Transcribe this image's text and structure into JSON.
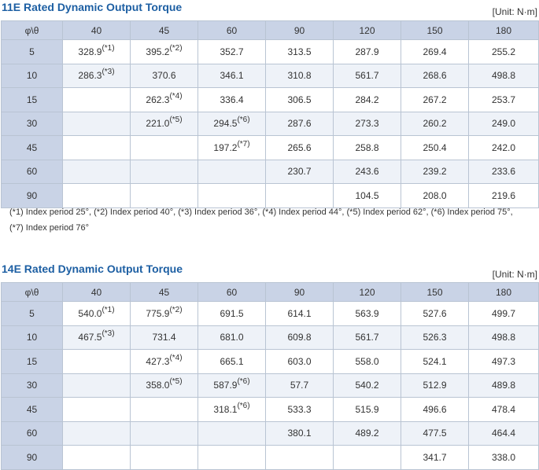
{
  "tables": [
    {
      "title": "11E Rated Dynamic Output Torque",
      "unit": "[Unit: N·m]",
      "header": [
        "φ\\θ",
        "40",
        "45",
        "60",
        "90",
        "120",
        "150",
        "180"
      ],
      "rows": [
        {
          "phi": "5",
          "cells": [
            {
              "v": "328.9",
              "s": "(*1)"
            },
            {
              "v": "395.2",
              "s": "(*2)"
            },
            {
              "v": "352.7"
            },
            {
              "v": "313.5"
            },
            {
              "v": "287.9"
            },
            {
              "v": "269.4"
            },
            {
              "v": "255.2"
            }
          ]
        },
        {
          "phi": "10",
          "cells": [
            {
              "v": "286.3",
              "s": "(*3)"
            },
            {
              "v": "370.6"
            },
            {
              "v": "346.1"
            },
            {
              "v": "310.8"
            },
            {
              "v": "561.7"
            },
            {
              "v": "268.6"
            },
            {
              "v": "498.8"
            }
          ]
        },
        {
          "phi": "15",
          "cells": [
            {
              "v": ""
            },
            {
              "v": "262.3",
              "s": "(*4)"
            },
            {
              "v": "336.4"
            },
            {
              "v": "306.5"
            },
            {
              "v": "284.2"
            },
            {
              "v": "267.2"
            },
            {
              "v": "253.7"
            }
          ]
        },
        {
          "phi": "30",
          "cells": [
            {
              "v": ""
            },
            {
              "v": "221.0",
              "s": "(*5)"
            },
            {
              "v": "294.5",
              "s": "(*6)"
            },
            {
              "v": "287.6"
            },
            {
              "v": "273.3"
            },
            {
              "v": "260.2"
            },
            {
              "v": "249.0"
            }
          ]
        },
        {
          "phi": "45",
          "cells": [
            {
              "v": ""
            },
            {
              "v": ""
            },
            {
              "v": "197.2",
              "s": "(*7)"
            },
            {
              "v": "265.6"
            },
            {
              "v": "258.8"
            },
            {
              "v": "250.4"
            },
            {
              "v": "242.0"
            }
          ]
        },
        {
          "phi": "60",
          "cells": [
            {
              "v": ""
            },
            {
              "v": ""
            },
            {
              "v": ""
            },
            {
              "v": "230.7"
            },
            {
              "v": "243.6"
            },
            {
              "v": "239.2"
            },
            {
              "v": "233.6"
            }
          ]
        },
        {
          "phi": "90",
          "cells": [
            {
              "v": ""
            },
            {
              "v": ""
            },
            {
              "v": ""
            },
            {
              "v": ""
            },
            {
              "v": "104.5"
            },
            {
              "v": "208.0"
            },
            {
              "v": "219.6"
            }
          ]
        }
      ],
      "note": "(*1) Index period 25°, (*2) Index period 40°, (*3) Index period 36°, (*4) Index period 44°, (*5) Index period 62°, (*6) Index period 75°, (*7) Index period 76°"
    },
    {
      "title": "14E Rated Dynamic Output Torque",
      "unit": "[Unit: N·m]",
      "header": [
        "φ\\θ",
        "40",
        "45",
        "60",
        "90",
        "120",
        "150",
        "180"
      ],
      "rows": [
        {
          "phi": "5",
          "cells": [
            {
              "v": "540.0",
              "s": "(*1)"
            },
            {
              "v": "775.9",
              "s": "(*2)"
            },
            {
              "v": "691.5"
            },
            {
              "v": "614.1"
            },
            {
              "v": "563.9"
            },
            {
              "v": "527.6"
            },
            {
              "v": "499.7"
            }
          ]
        },
        {
          "phi": "10",
          "cells": [
            {
              "v": "467.5",
              "s": "(*3)"
            },
            {
              "v": "731.4"
            },
            {
              "v": "681.0"
            },
            {
              "v": "609.8"
            },
            {
              "v": "561.7"
            },
            {
              "v": "526.3"
            },
            {
              "v": "498.8"
            }
          ]
        },
        {
          "phi": "15",
          "cells": [
            {
              "v": ""
            },
            {
              "v": "427.3",
              "s": "(*4)"
            },
            {
              "v": "665.1"
            },
            {
              "v": "603.0"
            },
            {
              "v": "558.0"
            },
            {
              "v": "524.1"
            },
            {
              "v": "497.3"
            }
          ]
        },
        {
          "phi": "30",
          "cells": [
            {
              "v": ""
            },
            {
              "v": "358.0",
              "s": "(*5)"
            },
            {
              "v": "587.9",
              "s": "(*6)"
            },
            {
              "v": "57.7"
            },
            {
              "v": "540.2"
            },
            {
              "v": "512.9"
            },
            {
              "v": "489.8"
            }
          ]
        },
        {
          "phi": "45",
          "cells": [
            {
              "v": ""
            },
            {
              "v": ""
            },
            {
              "v": "318.1",
              "s": "(*6)"
            },
            {
              "v": "533.3"
            },
            {
              "v": "515.9"
            },
            {
              "v": "496.6"
            },
            {
              "v": "478.4"
            }
          ]
        },
        {
          "phi": "60",
          "cells": [
            {
              "v": ""
            },
            {
              "v": ""
            },
            {
              "v": ""
            },
            {
              "v": "380.1"
            },
            {
              "v": "489.2"
            },
            {
              "v": "477.5"
            },
            {
              "v": "464.4"
            }
          ]
        },
        {
          "phi": "90",
          "cells": [
            {
              "v": ""
            },
            {
              "v": ""
            },
            {
              "v": ""
            },
            {
              "v": ""
            },
            {
              "v": ""
            },
            {
              "v": "341.7"
            },
            {
              "v": "338.0"
            }
          ]
        }
      ]
    }
  ]
}
